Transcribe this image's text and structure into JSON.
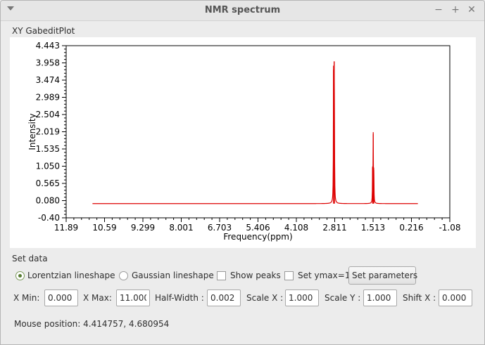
{
  "window": {
    "title": "NMR spectrum",
    "controls": {
      "minimize": "−",
      "maximize": "+",
      "close": "✕"
    }
  },
  "plot_frame_label": "XY GabeditPlot",
  "chart_data": {
    "type": "line",
    "xlabel": "Frequency(ppm)",
    "ylabel": "Intensity",
    "xlim": [
      11.89,
      -1.08
    ],
    "ylim": [
      -0.4,
      4.443
    ],
    "x_tick_labels": [
      "11.89",
      "10.59",
      "9.299",
      "8.001",
      "6.703",
      "5.406",
      "4.108",
      "2.811",
      "1.513",
      "0.216",
      "-1.08"
    ],
    "y_tick_labels": [
      "4.443",
      "3.958",
      "3.474",
      "2.989",
      "2.504",
      "2.019",
      "1.535",
      "1.050",
      "0.565",
      "0.080",
      "-0.40"
    ],
    "grid": false,
    "color": "#dd0000",
    "baseline": 0.0,
    "x_range": [
      11.0,
      0.0
    ],
    "peaks": [
      {
        "x": 2.85,
        "y": 3.88
      },
      {
        "x": 2.83,
        "y": 4.0
      },
      {
        "x": 2.82,
        "y": 1.5
      },
      {
        "x": 1.53,
        "y": 1.0
      },
      {
        "x": 1.51,
        "y": 1.95
      },
      {
        "x": 1.49,
        "y": 0.95
      }
    ]
  },
  "set_data": {
    "label": "Set data",
    "lorentzian": "Lorentzian lineshape",
    "gaussian": "Gaussian lineshape",
    "show_peaks": "Show peaks",
    "set_ymax": "Set ymax=1",
    "set_parameters": "Set parameters",
    "selected_lineshape": "Lorentzian lineshape"
  },
  "params": {
    "xmin_label": "X Min:",
    "xmin": "0.000",
    "xmax_label": "X Max:",
    "xmax": "11.000",
    "halfwidth_label": "Half-Width :",
    "halfwidth": "0.002",
    "scalex_label": "Scale X :",
    "scalex": "1.000",
    "scaley_label": "Scale Y :",
    "scaley": "1.000",
    "shiftx_label": "Shift X :",
    "shiftx": "0.000"
  },
  "status": {
    "mouse_position": "Mouse position: 4.414757, 4.680954"
  }
}
